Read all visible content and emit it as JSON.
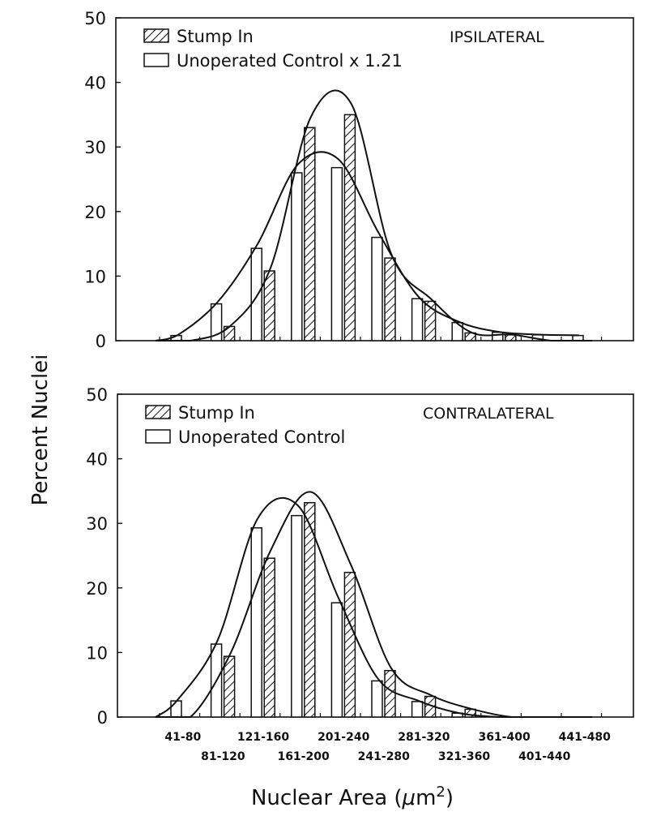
{
  "figure": {
    "ylabel": "Percent Nuclei",
    "xlabel_main": "Nuclear Area (",
    "xlabel_mu": "μ",
    "xlabel_unit": "m",
    "xlabel_sup": "2",
    "xlabel_close": ")"
  },
  "chart_data": [
    {
      "type": "bar",
      "panel": "top",
      "annotation": "IPSILATERAL",
      "xlabel": "Nuclear Area (μm2)",
      "ylabel": "Percent Nuclei",
      "ylim": [
        0,
        50
      ],
      "yticks": [
        0,
        10,
        20,
        30,
        40,
        50
      ],
      "grid": false,
      "legend_position": "top-left",
      "categories": [
        "41-80",
        "81-120",
        "121-160",
        "161-200",
        "201-240",
        "241-280",
        "281-320",
        "321-360",
        "361-400",
        "401-440",
        "441-480"
      ],
      "series": [
        {
          "name": "Unoperated Control x 1.21",
          "pattern": "open",
          "values": [
            0.8,
            5.7,
            14.3,
            26,
            26.8,
            16,
            6.5,
            2.8,
            1.3,
            0.9,
            0.8
          ]
        },
        {
          "name": "Stump In",
          "pattern": "hatched",
          "values": [
            0,
            2.2,
            10.8,
            33,
            35,
            12.8,
            6.1,
            1.2,
            0.9,
            0,
            0
          ]
        }
      ],
      "curves": [
        {
          "name": "Stump In fit",
          "peak": 37.8
        },
        {
          "name": "Unoperated Control fit",
          "peak": 28.2
        }
      ]
    },
    {
      "type": "bar",
      "panel": "bottom",
      "annotation": "CONTRALATERAL",
      "xlabel": "Nuclear Area (μm2)",
      "ylabel": "Percent Nuclei",
      "ylim": [
        0,
        50
      ],
      "yticks": [
        0,
        10,
        20,
        30,
        40,
        50
      ],
      "grid": false,
      "legend_position": "top-left",
      "categories": [
        "41-80",
        "81-120",
        "121-160",
        "161-200",
        "201-240",
        "241-280",
        "281-320",
        "321-360",
        "361-400",
        "401-440",
        "441-480"
      ],
      "series": [
        {
          "name": "Unoperated Control",
          "pattern": "open",
          "values": [
            2.5,
            11.3,
            29.3,
            31.2,
            17.7,
            5.6,
            2.4,
            0.6,
            0,
            0,
            0
          ]
        },
        {
          "name": "Stump In",
          "pattern": "hatched",
          "values": [
            0,
            9.4,
            24.6,
            33.2,
            22.4,
            7.2,
            3.2,
            1.2,
            0,
            0,
            0
          ]
        }
      ],
      "curves": [
        {
          "name": "Unoperated Control fit",
          "peak": 32.7
        },
        {
          "name": "Stump In fit",
          "peak": 33.1
        }
      ]
    }
  ],
  "xtick_labels_row1": [
    "41-80",
    "121-160",
    "201-240",
    "281-320",
    "361-400",
    "441-480"
  ],
  "xtick_labels_row2": [
    "81-120",
    "161-200",
    "241-280",
    "321-360",
    "401-440"
  ]
}
